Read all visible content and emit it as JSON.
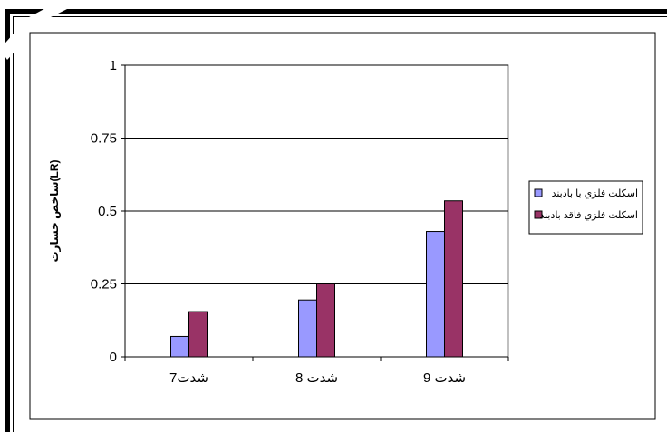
{
  "chart_data": {
    "type": "bar",
    "categories": [
      "شدت7",
      "شدت 8",
      "شدت 9"
    ],
    "series": [
      {
        "name": "اسکلت فلزي با بادبند",
        "values": [
          0.07,
          0.195,
          0.43
        ],
        "color": "#9999FF"
      },
      {
        "name": "اسکلت فلزي فاقد بادبند",
        "values": [
          0.155,
          0.25,
          0.535
        ],
        "color": "#993366"
      }
    ],
    "yticks": [
      "0",
      "0.25",
      "0.5",
      "0.75",
      "1"
    ],
    "ylim": [
      0,
      1
    ],
    "ylabel": "شاخص خسارت(LR)",
    "xlabel": "",
    "grid": true,
    "legend": "right"
  }
}
